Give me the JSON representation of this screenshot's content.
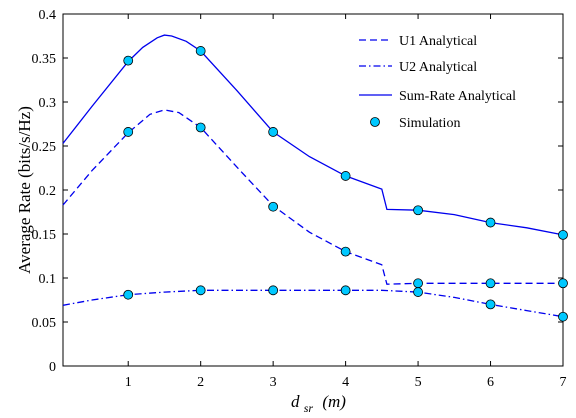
{
  "chart_data": {
    "type": "line",
    "title": "",
    "ylabel": "Average Rate (bits/s/Hz)",
    "xlabel": {
      "main": "d",
      "sub": "sr",
      "unit": "(m)"
    },
    "xlim": [
      0.1,
      7
    ],
    "ylim": [
      0,
      0.4
    ],
    "xticks": [
      1,
      2,
      3,
      4,
      5,
      6,
      7
    ],
    "yticks": [
      0,
      0.05,
      0.1,
      0.15,
      0.2,
      0.25,
      0.3,
      0.35,
      0.4
    ],
    "ytick_labels": [
      "0",
      "0.05",
      "0.1",
      "0.15",
      "0.2",
      "0.25",
      "0.3",
      "0.35",
      "0.4"
    ],
    "grid": false,
    "legend_position": "top-right",
    "line_color": "#0000ee",
    "marker_fill": "#00c8ff",
    "series": [
      {
        "name": "U1 Analytical",
        "style": "dashed",
        "x": [
          0.1,
          0.5,
          1.0,
          1.3,
          1.5,
          1.7,
          2.0,
          2.5,
          3.0,
          3.5,
          4.0,
          4.5,
          4.57,
          5.0,
          6.0,
          7.0
        ],
        "y": [
          0.183,
          0.222,
          0.265,
          0.286,
          0.291,
          0.288,
          0.271,
          0.226,
          0.182,
          0.152,
          0.13,
          0.115,
          0.093,
          0.094,
          0.094,
          0.094
        ]
      },
      {
        "name": "U2 Analytical",
        "style": "dashdot",
        "x": [
          0.1,
          0.5,
          1.0,
          1.5,
          2.0,
          2.5,
          3.0,
          3.5,
          4.0,
          4.5,
          5.0,
          5.5,
          6.0,
          6.5,
          7.0
        ],
        "y": [
          0.069,
          0.075,
          0.081,
          0.084,
          0.086,
          0.086,
          0.086,
          0.086,
          0.086,
          0.086,
          0.084,
          0.078,
          0.07,
          0.063,
          0.056
        ]
      },
      {
        "name": "Sum-Rate Analytical",
        "style": "solid",
        "x": [
          0.1,
          0.5,
          1.0,
          1.2,
          1.4,
          1.5,
          1.6,
          1.8,
          2.0,
          2.5,
          3.0,
          3.5,
          4.0,
          4.5,
          4.57,
          5.0,
          5.5,
          6.0,
          6.5,
          7.0
        ],
        "y": [
          0.253,
          0.295,
          0.346,
          0.362,
          0.373,
          0.376,
          0.375,
          0.369,
          0.358,
          0.313,
          0.266,
          0.238,
          0.216,
          0.201,
          0.178,
          0.177,
          0.172,
          0.163,
          0.157,
          0.149
        ]
      }
    ],
    "simulation": {
      "name": "Simulation",
      "x": [
        1,
        2,
        3,
        4,
        5,
        6,
        7
      ],
      "u1": [
        0.266,
        0.271,
        0.181,
        0.13,
        0.094,
        0.094,
        0.094
      ],
      "u2": [
        0.081,
        0.086,
        0.086,
        0.086,
        0.084,
        0.07,
        0.056
      ],
      "sum": [
        0.347,
        0.358,
        0.266,
        0.216,
        0.177,
        0.163,
        0.149
      ]
    }
  }
}
